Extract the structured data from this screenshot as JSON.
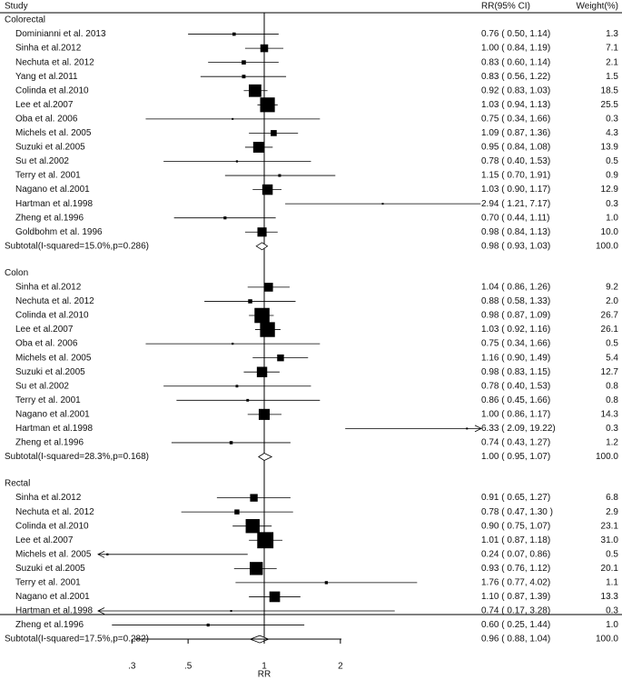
{
  "chart_data": {
    "type": "forest",
    "scale": "log",
    "headers": {
      "study": "Study",
      "ci": "RR(95% CI)",
      "weight": "Weight(%)"
    },
    "x_ticks": [
      ".3",
      ".5",
      "1",
      "2"
    ],
    "x_tick_values": [
      0.3,
      0.5,
      1,
      2
    ],
    "xlabel": "RR",
    "groups": [
      {
        "name": "Colorectal",
        "studies": [
          {
            "study": "Dominianni et al. 2013",
            "rr": 0.76,
            "lo": 0.5,
            "hi": 1.14,
            "ci": "0.76 ( 0.50, 1.14)",
            "weight": "1.3"
          },
          {
            "study": "Sinha et al.2012",
            "rr": 1.0,
            "lo": 0.84,
            "hi": 1.19,
            "ci": "1.00 ( 0.84, 1.19)",
            "weight": "7.1"
          },
          {
            "study": "Nechuta et al. 2012",
            "rr": 0.83,
            "lo": 0.6,
            "hi": 1.14,
            "ci": "0.83 ( 0.60, 1.14)",
            "weight": "2.1"
          },
          {
            "study": "Yang et al.2011",
            "rr": 0.83,
            "lo": 0.56,
            "hi": 1.22,
            "ci": "0.83 ( 0.56, 1.22)",
            "weight": "1.5"
          },
          {
            "study": "Colinda et al.2010",
            "rr": 0.92,
            "lo": 0.83,
            "hi": 1.03,
            "ci": "0.92 ( 0.83, 1.03)",
            "weight": "18.5"
          },
          {
            "study": "Lee et al.2007",
            "rr": 1.03,
            "lo": 0.94,
            "hi": 1.13,
            "ci": "1.03 ( 0.94, 1.13)",
            "weight": "25.5"
          },
          {
            "study": "Oba et al. 2006",
            "rr": 0.75,
            "lo": 0.34,
            "hi": 1.66,
            "ci": "0.75 ( 0.34, 1.66)",
            "weight": "0.3"
          },
          {
            "study": "Michels et al. 2005",
            "rr": 1.09,
            "lo": 0.87,
            "hi": 1.36,
            "ci": "1.09 ( 0.87, 1.36)",
            "weight": "4.3"
          },
          {
            "study": "Suzuki et al.2005",
            "rr": 0.95,
            "lo": 0.84,
            "hi": 1.08,
            "ci": "0.95 ( 0.84, 1.08)",
            "weight": "13.9"
          },
          {
            "study": "Su et al.2002",
            "rr": 0.78,
            "lo": 0.4,
            "hi": 1.53,
            "ci": "0.78 ( 0.40, 1.53)",
            "weight": "0.5"
          },
          {
            "study": "Terry et al. 2001",
            "rr": 1.15,
            "lo": 0.7,
            "hi": 1.91,
            "ci": "1.15 ( 0.70, 1.91)",
            "weight": "0.9"
          },
          {
            "study": "Nagano et al.2001",
            "rr": 1.03,
            "lo": 0.9,
            "hi": 1.17,
            "ci": "1.03 ( 0.90, 1.17)",
            "weight": "12.9"
          },
          {
            "study": "Hartman et al.1998",
            "rr": 2.94,
            "lo": 1.21,
            "hi": 7.17,
            "ci": "2.94 ( 1.21, 7.17)",
            "weight": "0.3"
          },
          {
            "study": "Zheng et al.1996",
            "rr": 0.7,
            "lo": 0.44,
            "hi": 1.11,
            "ci": "0.70 ( 0.44, 1.11)",
            "weight": "1.0"
          },
          {
            "study": "Goldbohm et al. 1996",
            "rr": 0.98,
            "lo": 0.84,
            "hi": 1.13,
            "ci": "0.98 ( 0.84, 1.13)",
            "weight": "10.0"
          }
        ],
        "subtotal": {
          "label": "Subtotal(I-squared=15.0%,p=0.286)",
          "rr": 0.98,
          "lo": 0.93,
          "hi": 1.03,
          "ci": "0.98 ( 0.93, 1.03)",
          "weight": "100.0"
        }
      },
      {
        "name": "Colon",
        "studies": [
          {
            "study": "Sinha et al.2012",
            "rr": 1.04,
            "lo": 0.86,
            "hi": 1.26,
            "ci": "1.04 ( 0.86, 1.26)",
            "weight": "9.2"
          },
          {
            "study": "Nechuta et al. 2012",
            "rr": 0.88,
            "lo": 0.58,
            "hi": 1.33,
            "ci": "0.88 ( 0.58, 1.33)",
            "weight": "2.0"
          },
          {
            "study": "Colinda et al.2010",
            "rr": 0.98,
            "lo": 0.87,
            "hi": 1.09,
            "ci": "0.98 ( 0.87, 1.09)",
            "weight": "26.7"
          },
          {
            "study": "Lee et al.2007",
            "rr": 1.03,
            "lo": 0.92,
            "hi": 1.16,
            "ci": "1.03 ( 0.92, 1.16)",
            "weight": "26.1"
          },
          {
            "study": "Oba et al. 2006",
            "rr": 0.75,
            "lo": 0.34,
            "hi": 1.66,
            "ci": "0.75 ( 0.34, 1.66)",
            "weight": "0.5"
          },
          {
            "study": "Michels et al. 2005",
            "rr": 1.16,
            "lo": 0.9,
            "hi": 1.49,
            "ci": "1.16 ( 0.90, 1.49)",
            "weight": "5.4"
          },
          {
            "study": "Suzuki et al.2005",
            "rr": 0.98,
            "lo": 0.83,
            "hi": 1.15,
            "ci": "0.98 ( 0.83, 1.15)",
            "weight": "12.7"
          },
          {
            "study": "Su et al.2002",
            "rr": 0.78,
            "lo": 0.4,
            "hi": 1.53,
            "ci": "0.78 ( 0.40, 1.53)",
            "weight": "0.8"
          },
          {
            "study": "Terry et al. 2001",
            "rr": 0.86,
            "lo": 0.45,
            "hi": 1.66,
            "ci": "0.86 ( 0.45, 1.66)",
            "weight": "0.8"
          },
          {
            "study": "Nagano et al.2001",
            "rr": 1.0,
            "lo": 0.86,
            "hi": 1.17,
            "ci": "1.00 ( 0.86, 1.17)",
            "weight": "14.3"
          },
          {
            "study": "Hartman et al.1998",
            "rr": 6.33,
            "lo": 2.09,
            "hi": 19.22,
            "ci": "6.33 ( 2.09, 19.22)",
            "weight": "0.3"
          },
          {
            "study": "Zheng et al.1996",
            "rr": 0.74,
            "lo": 0.43,
            "hi": 1.27,
            "ci": "0.74 ( 0.43, 1.27)",
            "weight": "1.2"
          }
        ],
        "subtotal": {
          "label": "Subtotal(I-squared=28.3%,p=0.168)",
          "rr": 1.0,
          "lo": 0.95,
          "hi": 1.07,
          "ci": "1.00 ( 0.95, 1.07)",
          "weight": "100.0"
        }
      },
      {
        "name": "Rectal",
        "studies": [
          {
            "study": "Sinha et al.2012",
            "rr": 0.91,
            "lo": 0.65,
            "hi": 1.27,
            "ci": "0.91 ( 0.65, 1.27)",
            "weight": "6.8"
          },
          {
            "study": "Nechuta et al. 2012",
            "rr": 0.78,
            "lo": 0.47,
            "hi": 1.3,
            "ci": "0.78 ( 0.47, 1.30 )",
            "weight": "2.9"
          },
          {
            "study": "Colinda et al.2010",
            "rr": 0.9,
            "lo": 0.75,
            "hi": 1.07,
            "ci": "0.90 ( 0.75, 1.07)",
            "weight": "23.1"
          },
          {
            "study": "Lee et al.2007",
            "rr": 1.01,
            "lo": 0.87,
            "hi": 1.18,
            "ci": "1.01 ( 0.87, 1.18)",
            "weight": "31.0"
          },
          {
            "study": "Michels et al. 2005",
            "rr": 0.24,
            "lo": 0.07,
            "hi": 0.86,
            "ci": "0.24 ( 0.07, 0.86)",
            "weight": "0.5"
          },
          {
            "study": "Suzuki et al.2005",
            "rr": 0.93,
            "lo": 0.76,
            "hi": 1.12,
            "ci": "0.93 ( 0.76, 1.12)",
            "weight": "20.1"
          },
          {
            "study": "Terry et al. 2001",
            "rr": 1.76,
            "lo": 0.77,
            "hi": 4.02,
            "ci": "1.76 ( 0.77, 4.02)",
            "weight": "1.1"
          },
          {
            "study": "Nagano et al.2001",
            "rr": 1.1,
            "lo": 0.87,
            "hi": 1.39,
            "ci": "1.10 ( 0.87, 1.39)",
            "weight": "13.3"
          },
          {
            "study": "Hartman et al.1998",
            "rr": 0.74,
            "lo": 0.17,
            "hi": 3.28,
            "ci": "0.74 ( 0.17, 3.28)",
            "weight": "0.3"
          },
          {
            "study": "Zheng et al.1996",
            "rr": 0.6,
            "lo": 0.25,
            "hi": 1.44,
            "ci": "0.60 ( 0.25, 1.44)",
            "weight": "1.0"
          }
        ],
        "subtotal": {
          "label": "Subtotal(I-squared=17.5%,p=0.282)",
          "rr": 0.96,
          "lo": 0.88,
          "hi": 1.04,
          "ci": "0.96 ( 0.88, 1.04)",
          "weight": "100.0"
        }
      }
    ]
  }
}
